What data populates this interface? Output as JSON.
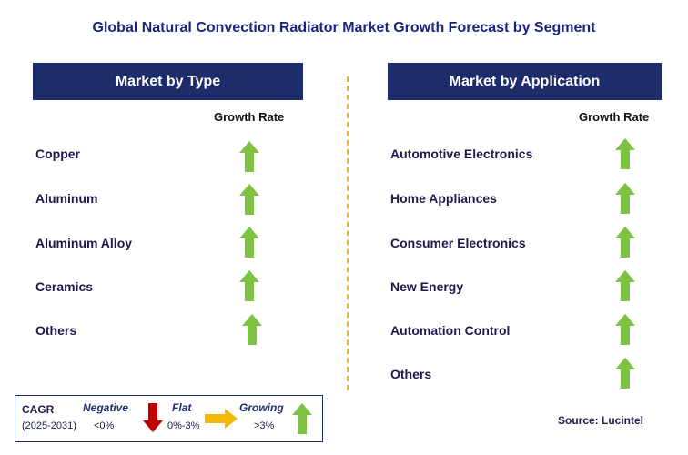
{
  "title": "Global Natural Convection Radiator Market Growth Forecast by Segment",
  "panels": {
    "type": {
      "header": "Market by Type",
      "growth_header": "Growth Rate",
      "segments": [
        "Copper",
        "Aluminum",
        "Aluminum Alloy",
        "Ceramics",
        "Others"
      ]
    },
    "application": {
      "header": "Market by Application",
      "growth_header": "Growth Rate",
      "segments": [
        "Automotive Electronics",
        "Home Appliances",
        "Consumer Electronics",
        "New Energy",
        "Automation Control",
        "Others"
      ]
    }
  },
  "legend": {
    "cagr_label": "CAGR",
    "period": "(2025-2031)",
    "negative": {
      "label": "Negative",
      "range": "<0%",
      "color": "#c00000",
      "icon": "down-arrow-icon"
    },
    "flat": {
      "label": "Flat",
      "range": "0%-3%",
      "color": "#f5b800",
      "icon": "right-arrow-icon"
    },
    "growing": {
      "label": "Growing",
      "range": ">3%",
      "color": "#7dc242",
      "icon": "up-arrow-icon"
    }
  },
  "source": "Source: Lucintel",
  "chart_data": {
    "type": "table",
    "title": "Global Natural Convection Radiator Market Growth Forecast by Segment",
    "columns": [
      "Segment",
      "Growth Rate"
    ],
    "groups": [
      {
        "name": "Market by Type",
        "rows": [
          {
            "segment": "Copper",
            "growth": "Growing"
          },
          {
            "segment": "Aluminum",
            "growth": "Growing"
          },
          {
            "segment": "Aluminum Alloy",
            "growth": "Growing"
          },
          {
            "segment": "Ceramics",
            "growth": "Growing"
          },
          {
            "segment": "Others",
            "growth": "Growing"
          }
        ]
      },
      {
        "name": "Market by Application",
        "rows": [
          {
            "segment": "Automotive Electronics",
            "growth": "Growing"
          },
          {
            "segment": "Home Appliances",
            "growth": "Growing"
          },
          {
            "segment": "Consumer Electronics",
            "growth": "Growing"
          },
          {
            "segment": "New Energy",
            "growth": "Growing"
          },
          {
            "segment": "Automation Control",
            "growth": "Growing"
          },
          {
            "segment": "Others",
            "growth": "Growing"
          }
        ]
      }
    ]
  }
}
